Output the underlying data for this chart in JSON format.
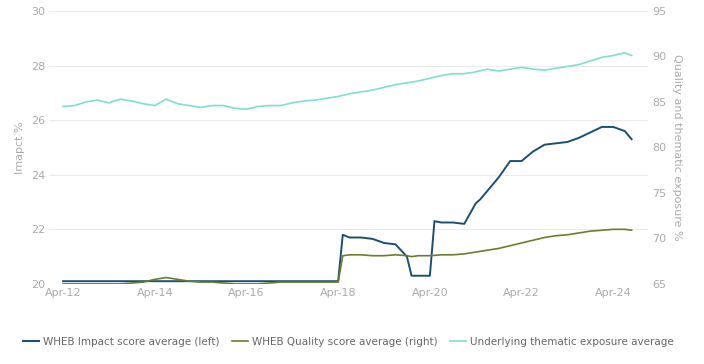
{
  "title": "",
  "left_ylabel": "Imapct %",
  "right_ylabel": "Quality and thematic exposure %",
  "ylim_left": [
    20,
    30
  ],
  "ylim_right": [
    65,
    95
  ],
  "yticks_left": [
    20,
    22,
    24,
    26,
    28,
    30
  ],
  "yticks_right": [
    65,
    70,
    75,
    80,
    85,
    90,
    95
  ],
  "xtick_labels": [
    "Apr-12",
    "Apr-14",
    "Apr-16",
    "Apr-18",
    "Apr-20",
    "Apr-22",
    "Apr-24"
  ],
  "xtick_positions": [
    2012,
    2014,
    2016,
    2018,
    2020,
    2022,
    2024
  ],
  "legend_labels": [
    "WHEB Impact score average (left)",
    "WHEB Quality score average (right)",
    "Underlying thematic exposure average"
  ],
  "color_impact": "#1b4f72",
  "color_quality": "#6e7c2f",
  "color_thematic": "#80ddd0",
  "background_color": "#ffffff",
  "xlim": [
    2011.7,
    2024.75
  ],
  "impact_x": [
    2012.0,
    2012.25,
    2012.5,
    2012.75,
    2013.0,
    2013.25,
    2013.5,
    2013.75,
    2014.0,
    2014.25,
    2014.5,
    2014.75,
    2015.0,
    2015.25,
    2015.5,
    2015.75,
    2016.0,
    2016.25,
    2016.5,
    2016.75,
    2017.0,
    2017.25,
    2017.5,
    2017.75,
    2018.0,
    2018.1,
    2018.25,
    2018.5,
    2018.75,
    2019.0,
    2019.25,
    2019.5,
    2019.6,
    2019.75,
    2020.0,
    2020.1,
    2020.25,
    2020.5,
    2020.75,
    2021.0,
    2021.1,
    2021.25,
    2021.5,
    2021.75,
    2022.0,
    2022.25,
    2022.5,
    2022.75,
    2023.0,
    2023.25,
    2023.5,
    2023.75,
    2024.0,
    2024.25,
    2024.4
  ],
  "impact_y": [
    20.1,
    20.1,
    20.1,
    20.1,
    20.1,
    20.1,
    20.1,
    20.1,
    20.1,
    20.1,
    20.1,
    20.1,
    20.1,
    20.1,
    20.1,
    20.1,
    20.1,
    20.1,
    20.1,
    20.1,
    20.1,
    20.1,
    20.1,
    20.1,
    20.1,
    21.8,
    21.7,
    21.7,
    21.65,
    21.5,
    21.45,
    21.0,
    20.3,
    20.3,
    20.3,
    22.3,
    22.25,
    22.25,
    22.2,
    22.95,
    23.1,
    23.4,
    23.9,
    24.5,
    24.5,
    24.85,
    25.1,
    25.15,
    25.2,
    25.35,
    25.55,
    25.75,
    25.75,
    25.6,
    25.3
  ],
  "quality_x": [
    2012.0,
    2012.25,
    2012.5,
    2012.75,
    2013.0,
    2013.25,
    2013.5,
    2013.75,
    2014.0,
    2014.25,
    2014.5,
    2014.75,
    2015.0,
    2015.25,
    2015.5,
    2015.75,
    2016.0,
    2016.25,
    2016.5,
    2016.75,
    2017.0,
    2017.25,
    2017.5,
    2017.75,
    2018.0,
    2018.1,
    2018.25,
    2018.5,
    2018.75,
    2019.0,
    2019.25,
    2019.5,
    2019.6,
    2019.75,
    2020.0,
    2020.25,
    2020.5,
    2020.75,
    2021.0,
    2021.25,
    2021.5,
    2021.75,
    2022.0,
    2022.25,
    2022.5,
    2022.75,
    2023.0,
    2023.25,
    2023.5,
    2023.75,
    2024.0,
    2024.25,
    2024.4
  ],
  "quality_y": [
    65.0,
    65.0,
    65.0,
    65.0,
    65.0,
    65.0,
    65.1,
    65.2,
    65.5,
    65.7,
    65.5,
    65.3,
    65.2,
    65.2,
    65.1,
    65.0,
    65.0,
    65.0,
    65.1,
    65.2,
    65.2,
    65.2,
    65.2,
    65.2,
    65.2,
    68.1,
    68.2,
    68.2,
    68.1,
    68.1,
    68.2,
    68.1,
    68.0,
    68.1,
    68.1,
    68.2,
    68.2,
    68.3,
    68.5,
    68.7,
    68.9,
    69.2,
    69.5,
    69.8,
    70.1,
    70.3,
    70.4,
    70.6,
    70.8,
    70.9,
    71.0,
    71.0,
    70.9
  ],
  "thematic_x": [
    2012.0,
    2012.25,
    2012.5,
    2012.75,
    2013.0,
    2013.25,
    2013.5,
    2013.75,
    2014.0,
    2014.25,
    2014.5,
    2014.75,
    2015.0,
    2015.25,
    2015.5,
    2015.75,
    2016.0,
    2016.25,
    2016.5,
    2016.75,
    2017.0,
    2017.25,
    2017.5,
    2017.75,
    2018.0,
    2018.25,
    2018.5,
    2018.75,
    2019.0,
    2019.25,
    2019.5,
    2019.75,
    2020.0,
    2020.25,
    2020.5,
    2020.75,
    2021.0,
    2021.25,
    2021.5,
    2021.75,
    2022.0,
    2022.25,
    2022.5,
    2022.75,
    2023.0,
    2023.25,
    2023.5,
    2023.75,
    2024.0,
    2024.25,
    2024.4
  ],
  "thematic_y": [
    84.5,
    84.6,
    85.0,
    85.2,
    84.9,
    85.3,
    85.1,
    84.8,
    84.6,
    85.3,
    84.8,
    84.6,
    84.4,
    84.6,
    84.6,
    84.3,
    84.2,
    84.5,
    84.6,
    84.6,
    84.9,
    85.1,
    85.2,
    85.4,
    85.6,
    85.9,
    86.1,
    86.3,
    86.6,
    86.9,
    87.1,
    87.3,
    87.6,
    87.9,
    88.1,
    88.1,
    88.3,
    88.6,
    88.4,
    88.6,
    88.8,
    88.6,
    88.5,
    88.7,
    88.9,
    89.1,
    89.5,
    89.9,
    90.1,
    90.4,
    90.1
  ]
}
